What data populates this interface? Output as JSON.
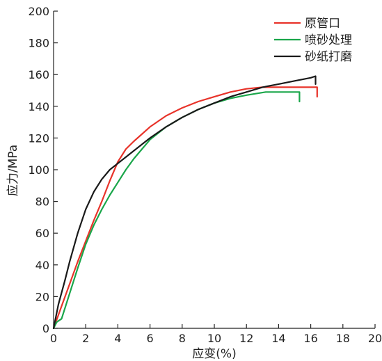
{
  "chart_data": {
    "type": "line",
    "xlabel": "应变(%)",
    "ylabel": "应力/MPa",
    "xlim": [
      0,
      20
    ],
    "ylim": [
      0,
      200
    ],
    "xticks": [
      0,
      2,
      4,
      6,
      8,
      10,
      12,
      14,
      16,
      18,
      20
    ],
    "yticks": [
      0,
      20,
      40,
      60,
      80,
      100,
      120,
      140,
      160,
      180,
      200
    ],
    "grid": false,
    "legend_position": "top-right",
    "series": [
      {
        "name": "原管口",
        "color": "#e8332a",
        "x": [
          0,
          0.5,
          1.0,
          1.5,
          2.0,
          2.5,
          3.0,
          3.5,
          4.0,
          4.5,
          5.0,
          6.0,
          7.0,
          8.0,
          9.0,
          10.0,
          11.0,
          12.0,
          13.0,
          14.0,
          15.0,
          16.0,
          16.4,
          16.4
        ],
        "y": [
          0,
          14,
          28,
          42,
          55,
          68,
          80,
          93,
          105,
          113,
          118,
          127,
          134,
          139,
          143,
          146,
          149,
          151,
          152,
          152,
          152,
          152,
          152,
          146
        ]
      },
      {
        "name": "喷砂处理",
        "color": "#1aa64a",
        "x": [
          0,
          0.2,
          0.5,
          1.0,
          1.5,
          2.0,
          2.5,
          3.0,
          3.5,
          4.0,
          4.5,
          5.0,
          6.0,
          7.0,
          8.0,
          9.0,
          10.0,
          11.0,
          12.0,
          13.2,
          14.0,
          15.0,
          15.3,
          15.3
        ],
        "y": [
          0,
          4,
          6,
          22,
          38,
          53,
          65,
          75,
          84,
          92,
          100,
          107,
          119,
          127,
          133,
          138,
          142,
          145,
          147,
          149,
          149,
          149,
          149,
          143
        ]
      },
      {
        "name": "砂纸打磨",
        "color": "#1a1a1a",
        "x": [
          0,
          0.3,
          0.7,
          1.0,
          1.5,
          2.0,
          2.5,
          3.0,
          3.5,
          4.0,
          5.0,
          6.0,
          7.0,
          8.0,
          9.0,
          10.0,
          11.0,
          12.0,
          13.0,
          14.0,
          15.0,
          16.0,
          16.3,
          16.3
        ],
        "y": [
          0,
          15,
          30,
          42,
          60,
          75,
          86,
          94,
          100,
          104,
          112,
          120,
          127,
          133,
          138,
          142,
          146,
          149,
          152,
          154,
          156,
          158,
          159,
          154
        ]
      }
    ]
  }
}
